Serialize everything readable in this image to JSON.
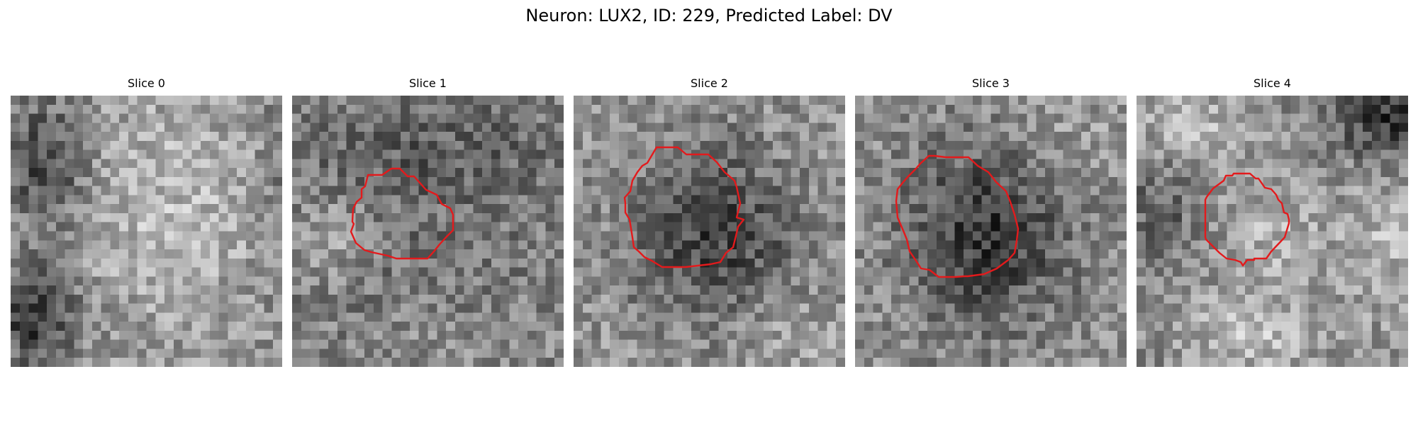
{
  "figure": {
    "title": "Neuron: LUX2, ID: 229, Predicted Label: DV",
    "roi_color": "#e31a1c",
    "colormap": "gray"
  },
  "slices": [
    {
      "label": "Slice 0",
      "has_roi": false,
      "image_description_icon": "grayscale-noise-image"
    },
    {
      "label": "Slice 1",
      "has_roi": true,
      "image_description_icon": "grayscale-noise-image"
    },
    {
      "label": "Slice 2",
      "has_roi": true,
      "image_description_icon": "grayscale-noise-image"
    },
    {
      "label": "Slice 3",
      "has_roi": true,
      "image_description_icon": "grayscale-noise-image"
    },
    {
      "label": "Slice 4",
      "has_roi": true,
      "image_description_icon": "grayscale-noise-image"
    }
  ]
}
